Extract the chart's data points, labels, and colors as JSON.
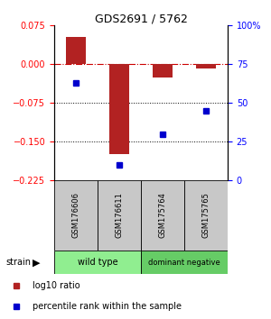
{
  "title": "GDS2691 / 5762",
  "samples": [
    "GSM176606",
    "GSM176611",
    "GSM175764",
    "GSM175765"
  ],
  "log10_ratio": [
    0.052,
    -0.175,
    -0.025,
    -0.008
  ],
  "percentile_rank": [
    63,
    10,
    30,
    45
  ],
  "groups": [
    {
      "label": "wild type",
      "samples": [
        0,
        1
      ],
      "color": "#90ee90"
    },
    {
      "label": "dominant negative",
      "samples": [
        2,
        3
      ],
      "color": "#66cc66"
    }
  ],
  "ylim_left": [
    0.075,
    -0.225
  ],
  "ylim_right": [
    100,
    0
  ],
  "yticks_left": [
    0.075,
    0,
    -0.075,
    -0.15,
    -0.225
  ],
  "yticks_right": [
    100,
    75,
    50,
    25,
    0
  ],
  "ytick_labels_right": [
    "100%",
    "75",
    "50",
    "25",
    "0"
  ],
  "bar_color": "#b22222",
  "dot_color": "#0000cd",
  "hline_color": "#cc0000",
  "grid_yticks": [
    -0.075,
    -0.15
  ],
  "legend_items": [
    {
      "color": "#b22222",
      "label": "log10 ratio"
    },
    {
      "color": "#0000cd",
      "label": "percentile rank within the sample"
    }
  ],
  "label_bg": "#c8c8c8",
  "group_colors": [
    "#90ee90",
    "#66cc66"
  ]
}
